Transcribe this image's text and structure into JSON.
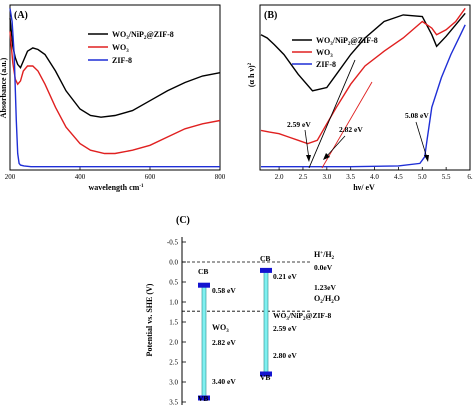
{
  "chart_data": [
    {
      "panel_label": "(A)",
      "type": "line",
      "xlabel": "wavelength cm",
      "xlabel_sup": "-1",
      "ylabel": "Absorbance (a.u.)",
      "xlim": [
        200,
        800
      ],
      "xticks": [
        "200",
        "400",
        "600",
        "800"
      ],
      "series": [
        {
          "name": "WO3/NiP2@ZIF-8",
          "color": "#000000",
          "x": [
            200,
            208,
            215,
            222,
            230,
            238,
            250,
            265,
            280,
            300,
            330,
            360,
            400,
            430,
            460,
            500,
            550,
            600,
            650,
            700,
            750,
            800
          ],
          "y": [
            0.92,
            0.75,
            0.68,
            0.64,
            0.62,
            0.66,
            0.72,
            0.74,
            0.73,
            0.7,
            0.6,
            0.48,
            0.37,
            0.33,
            0.32,
            0.33,
            0.36,
            0.42,
            0.48,
            0.53,
            0.57,
            0.59
          ]
        },
        {
          "name": "WO3",
          "color": "#e02020",
          "x": [
            200,
            208,
            215,
            222,
            230,
            238,
            250,
            265,
            280,
            300,
            330,
            360,
            400,
            430,
            470,
            500,
            550,
            600,
            650,
            700,
            750,
            800
          ],
          "y": [
            0.84,
            0.65,
            0.55,
            0.52,
            0.54,
            0.6,
            0.63,
            0.63,
            0.6,
            0.52,
            0.38,
            0.26,
            0.16,
            0.12,
            0.1,
            0.1,
            0.12,
            0.15,
            0.2,
            0.25,
            0.28,
            0.3
          ]
        },
        {
          "name": "ZIF-8",
          "color": "#1f2fd6",
          "x": [
            200,
            206,
            212,
            218,
            222,
            226,
            230,
            240,
            260,
            300,
            400,
            500,
            600,
            700,
            800
          ],
          "y": [
            0.98,
            0.9,
            0.7,
            0.3,
            0.1,
            0.04,
            0.03,
            0.025,
            0.02,
            0.02,
            0.02,
            0.02,
            0.02,
            0.02,
            0.02
          ]
        }
      ]
    },
    {
      "panel_label": "(B)",
      "type": "line",
      "xlabel": "hν/ eV",
      "ylabel": "(α h ν)",
      "ylabel_sup": "2",
      "xlim": [
        1.6,
        6.0
      ],
      "xticks": [
        "2.0",
        "2.5",
        "3.0",
        "3.5",
        "4.0",
        "4.5",
        "5.0",
        "5.5",
        "6."
      ],
      "series": [
        {
          "name": "WO3/NiP2@ZIF-8",
          "color": "#000000",
          "x": [
            1.62,
            1.75,
            1.9,
            2.1,
            2.4,
            2.7,
            3.0,
            3.2,
            3.5,
            3.8,
            4.2,
            4.6,
            5.0,
            5.2,
            5.3,
            5.5,
            5.7,
            5.9
          ],
          "y": [
            0.82,
            0.8,
            0.76,
            0.7,
            0.58,
            0.48,
            0.5,
            0.58,
            0.7,
            0.8,
            0.9,
            0.94,
            0.93,
            0.82,
            0.75,
            0.81,
            0.88,
            0.95
          ]
        },
        {
          "name": "WO3",
          "color": "#e02020",
          "x": [
            1.62,
            1.8,
            2.0,
            2.2,
            2.4,
            2.6,
            2.8,
            3.0,
            3.2,
            3.5,
            3.8,
            4.2,
            4.6,
            5.0,
            5.2,
            5.3,
            5.5,
            5.7,
            5.9
          ],
          "y": [
            0.24,
            0.23,
            0.22,
            0.2,
            0.18,
            0.16,
            0.18,
            0.28,
            0.38,
            0.52,
            0.63,
            0.72,
            0.8,
            0.9,
            0.86,
            0.82,
            0.85,
            0.9,
            0.98
          ]
        },
        {
          "name": "ZIF-8",
          "color": "#1f2fd6",
          "x": [
            1.62,
            2.5,
            3.5,
            4.5,
            4.95,
            5.05,
            5.1,
            5.2,
            5.4,
            5.6,
            5.8,
            5.9
          ],
          "y": [
            0.02,
            0.02,
            0.02,
            0.025,
            0.04,
            0.08,
            0.18,
            0.38,
            0.56,
            0.7,
            0.82,
            0.88
          ]
        }
      ],
      "annotations": [
        {
          "text": "2.59 eV",
          "x": 2.59
        },
        {
          "text": "2.82 eV",
          "x": 2.82
        },
        {
          "text": "5.08 eV",
          "x": 5.08
        }
      ]
    },
    {
      "panel_label": "(C)",
      "type": "diagram",
      "ylabel": "Potential vs. SHE (V)",
      "ylim": [
        -0.5,
        3.5
      ],
      "yticks": [
        "-0.5",
        "0.0",
        "0.5",
        "1.0",
        "1.5",
        "2.0",
        "2.5",
        "3.0",
        "3.5"
      ],
      "reference_lines": [
        {
          "label": "H",
          "label_sup": "+",
          "label_rest": "/H",
          "label_sub": "2",
          "value_text": "0.0eV",
          "y": 0.0
        },
        {
          "label": "O",
          "label_sub": "2",
          "label_rest": "/H",
          "label_sub2": "2",
          "label_end": "O",
          "value_text": "1.23eV",
          "y": 1.23
        }
      ],
      "bands": [
        {
          "name": "WO3",
          "name_main": "WO",
          "name_sub": "3",
          "cb": 0.58,
          "vb": 3.4,
          "gap_text": "2.82 eV",
          "cb_text": "0.58 eV",
          "vb_text": "3.40 eV"
        },
        {
          "name": "WO3/NiP2@ZIF-8",
          "name_main": "WO",
          "name_sub": "3",
          "name_mid": "/NiP",
          "name_sub2": "2",
          "name_end": "@ZIF-8",
          "cb": 0.21,
          "vb": 2.8,
          "gap_text": "2.59 eV",
          "cb_text": "0.21 eV",
          "vb_text": "2.80 eV"
        }
      ],
      "cb_label": "CB",
      "vb_label": "VB"
    }
  ]
}
